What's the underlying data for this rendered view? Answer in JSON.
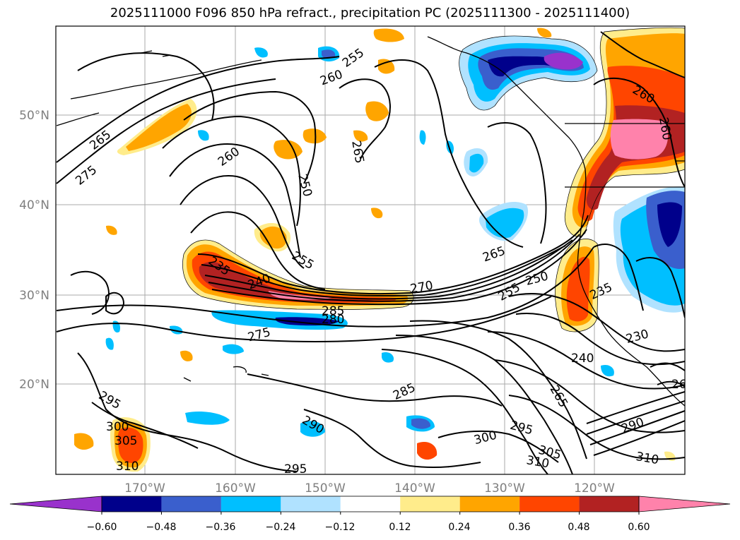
{
  "title": "2025111000 F096 850 hPa refract., precipitation PC (2025111300 - 2025111400)",
  "map": {
    "lat_ticks": [
      "50°N",
      "40°N",
      "30°N",
      "20°N"
    ],
    "lon_ticks": [
      "170°W",
      "160°W",
      "150°W",
      "140°W",
      "130°W",
      "120°W"
    ],
    "contour_labels": [
      "265",
      "275",
      "260",
      "255",
      "260",
      "265",
      "250",
      "240",
      "235",
      "255",
      "265",
      "270",
      "255",
      "250",
      "235",
      "230",
      "280",
      "285",
      "275",
      "240",
      "265",
      "295",
      "300",
      "305",
      "310",
      "290",
      "285",
      "295",
      "290",
      "300",
      "295",
      "305",
      "310",
      "310",
      "260",
      "260",
      "260"
    ]
  },
  "colorbar": {
    "labels": [
      "−0.60",
      "−0.48",
      "−0.36",
      "−0.24",
      "−0.12",
      "0.12",
      "0.24",
      "0.36",
      "0.48",
      "0.60"
    ],
    "colors": [
      "#9932cc",
      "#00008b",
      "#3a5fcd",
      "#00bfff",
      "#b0e2ff",
      "#ffffff",
      "#ffec8b",
      "#ffa500",
      "#ff4500",
      "#b22222",
      "#ff82ab"
    ]
  }
}
